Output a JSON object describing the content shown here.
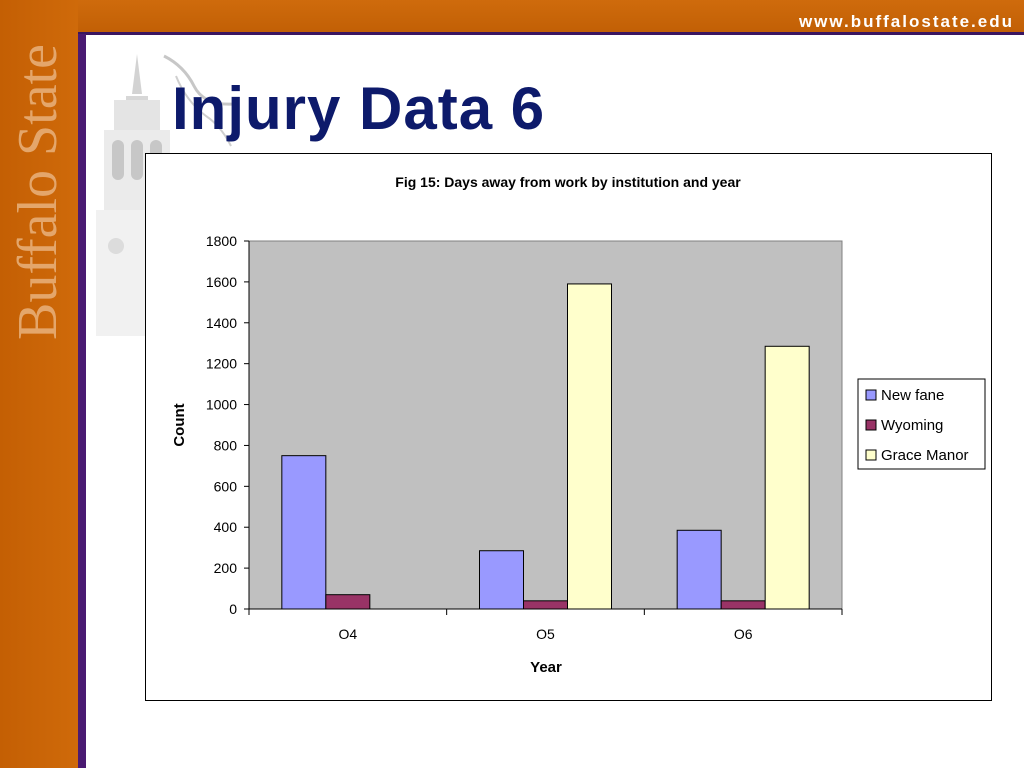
{
  "header": {
    "url": "www.buffalostate.edu"
  },
  "branding": {
    "wordmark": "Buffalo State"
  },
  "slide": {
    "title": "Injury Data 6"
  },
  "colors": {
    "orange": "#c86407",
    "purple": "#4a1a72",
    "title_blue": "#0d1a6b",
    "plot_bg": "#c0c0c0"
  },
  "chart_data": {
    "type": "bar",
    "title": "Fig 15: Days away from work by institution and year",
    "xlabel": "Year",
    "ylabel": "Count",
    "categories": [
      "O4",
      "O5",
      "O6"
    ],
    "ylim": [
      0,
      1800
    ],
    "yticks": [
      0,
      200,
      400,
      600,
      800,
      1000,
      1200,
      1400,
      1600,
      1800
    ],
    "grid": false,
    "legend_position": "right",
    "series": [
      {
        "name": "New fane",
        "color": "#9999ff",
        "values": [
          750,
          285,
          385
        ]
      },
      {
        "name": "Wyoming",
        "color": "#993366",
        "values": [
          70,
          40,
          40
        ]
      },
      {
        "name": "Grace Manor",
        "color": "#ffffcc",
        "values": [
          0,
          1590,
          1285
        ]
      }
    ]
  }
}
